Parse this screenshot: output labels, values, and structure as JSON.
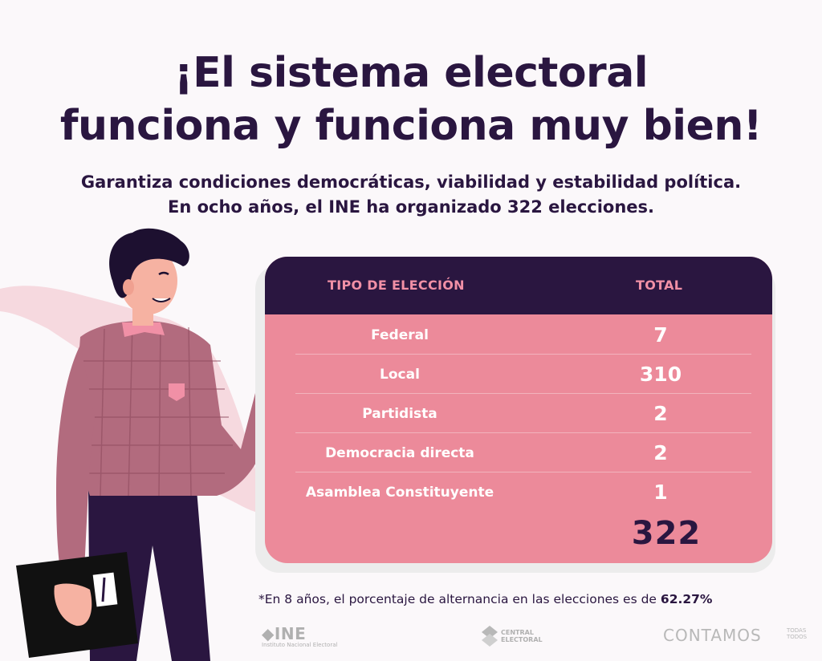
{
  "title": {
    "line1": "¡El sistema electoral",
    "line2": "funciona y funciona muy bien!"
  },
  "subtitle": {
    "line1": "Garantiza condiciones democráticas, viabilidad y estabilidad política.",
    "line2": "En ocho años, el INE ha organizado 322 elecciones."
  },
  "table": {
    "headers": [
      "TIPO DE ELECCIÓN",
      "TOTAL"
    ],
    "rows": [
      {
        "type": "Federal",
        "total": "7"
      },
      {
        "type": "Local",
        "total": "310"
      },
      {
        "type": "Partidista",
        "total": "2"
      },
      {
        "type": "Democracia directa",
        "total": "2"
      },
      {
        "type": "Asamblea Constituyente",
        "total": "1"
      }
    ],
    "grand_total": "322"
  },
  "footnote": {
    "text": "*En 8 años, el porcentaje de alternancia en las elecciones es de ",
    "value": "62.27%"
  },
  "logos": {
    "ine": "INE",
    "ine_sub": "Instituto Nacional Electoral",
    "central_line1": "CENTRAL",
    "central_line2": "ELECTORAL",
    "contamos": "CONTAMOS",
    "contamos_small1": "TODAS",
    "contamos_small2": "TODOS"
  },
  "colors": {
    "navy": "#2a1640",
    "pink": "#ec8a9a",
    "header_text": "#f190a6"
  }
}
